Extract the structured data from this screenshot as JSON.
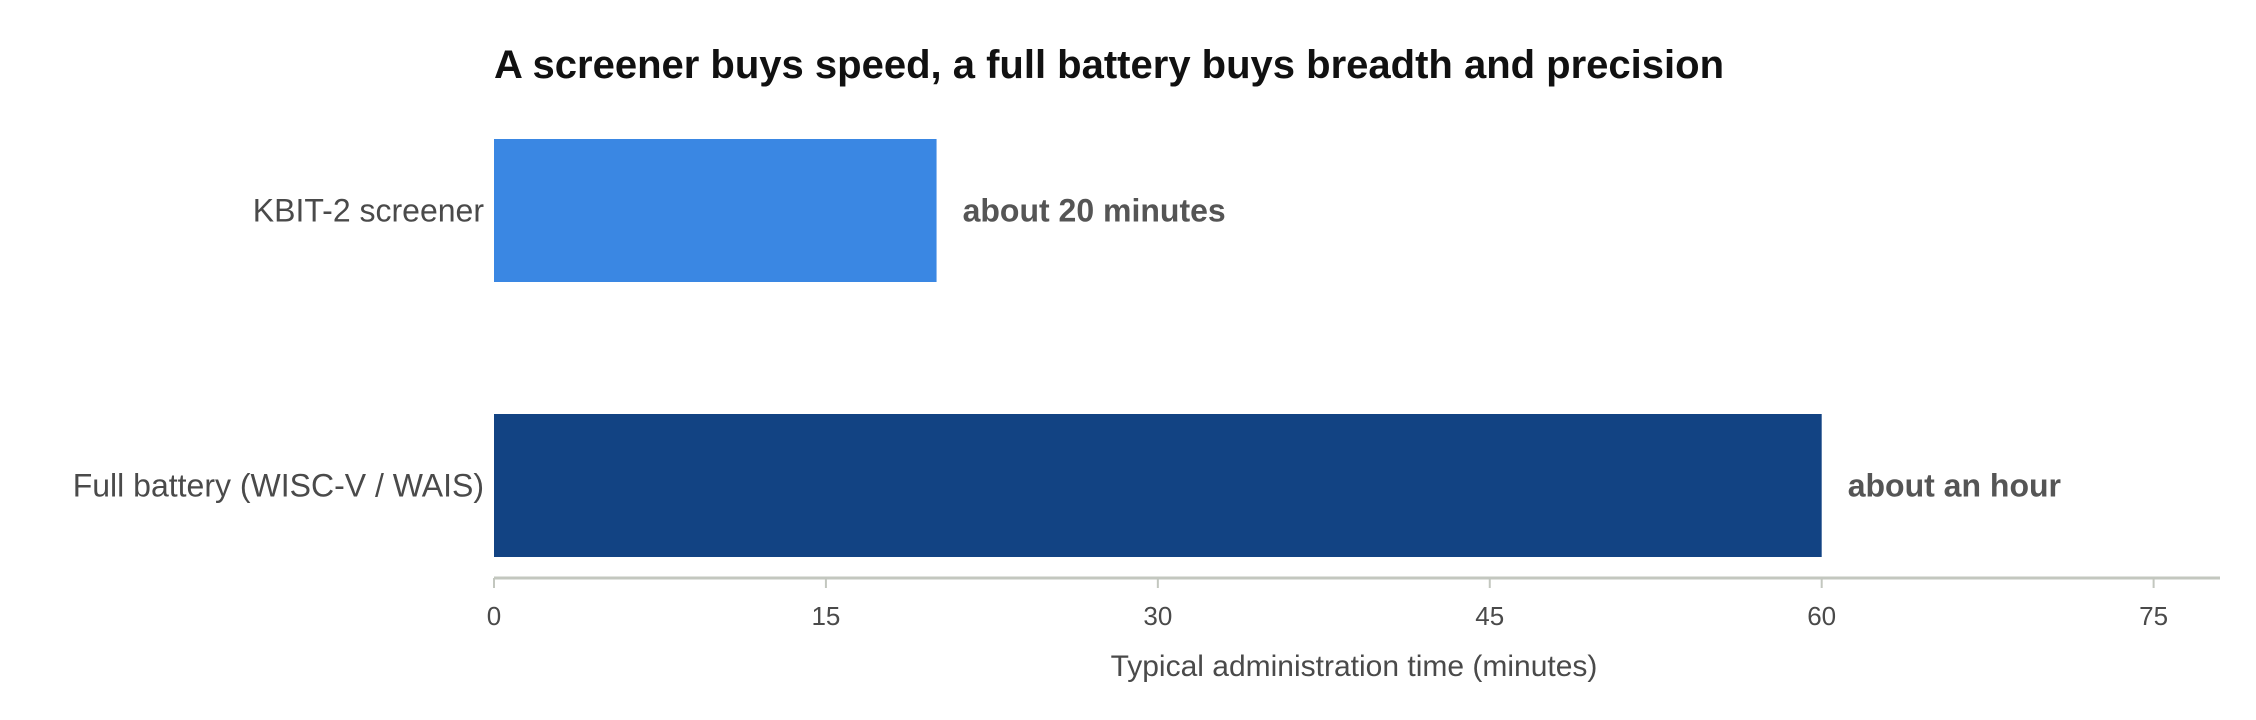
{
  "chart_data": {
    "type": "bar",
    "orientation": "horizontal",
    "title": "A screener buys speed, a full battery buys breadth and precision",
    "xlabel": "Typical administration time (minutes)",
    "ylabel": "",
    "xlim": [
      0,
      78
    ],
    "xticks": [
      0,
      15,
      30,
      45,
      60,
      75
    ],
    "categories": [
      "KBIT-2 screener",
      "Full battery (WISC-V / WAIS)"
    ],
    "values": [
      20,
      60
    ],
    "data_labels": [
      "about 20 minutes",
      "about an hour"
    ],
    "colors": [
      "#3a87e3",
      "#124383"
    ],
    "axis_color": "#c3c7bf",
    "grid": false,
    "legend": "none"
  }
}
